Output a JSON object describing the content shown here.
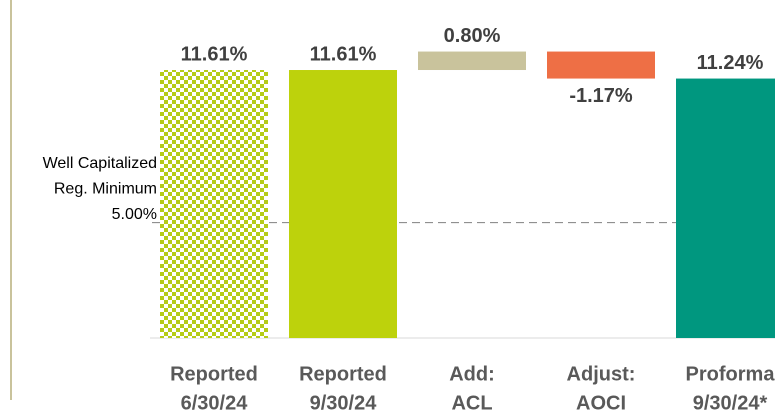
{
  "chart_data": {
    "type": "waterfall",
    "categories": [
      [
        "Reported",
        "6/30/24"
      ],
      [
        "Reported",
        "9/30/24"
      ],
      [
        "Add:",
        "ACL"
      ],
      [
        "Adjust:",
        "AOCI"
      ],
      [
        "Proforma",
        "9/30/24*"
      ]
    ],
    "values": [
      11.61,
      11.61,
      0.8,
      -1.17,
      11.24
    ],
    "value_labels": [
      "11.61%",
      "11.61%",
      "0.80%",
      "-1.17%",
      "11.24%"
    ],
    "measure": [
      "total",
      "total",
      "relative",
      "relative",
      "total"
    ],
    "colors": [
      "#b5cc18",
      "#bdd20c",
      "#c9c39c",
      "#ee6f45",
      "#00977f"
    ],
    "patterned": [
      true,
      false,
      false,
      false,
      false
    ],
    "ylim": [
      0,
      14.6
    ],
    "reference_line": {
      "value": 5.0,
      "label": [
        "Well Capitalized",
        "Reg. Minimum",
        "5.00%"
      ]
    }
  }
}
